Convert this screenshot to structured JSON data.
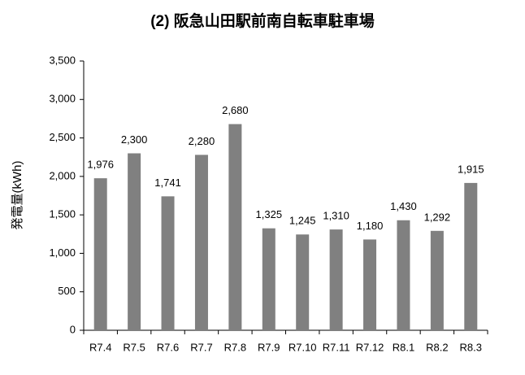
{
  "chart_data": {
    "type": "bar",
    "title": "(2) 阪急山田駅前南自転車駐車場",
    "y_label": "発電量(kWh)",
    "categories": [
      "R7.4",
      "R7.5",
      "R7.6",
      "R7.7",
      "R7.8",
      "R7.9",
      "R7.10",
      "R7.11",
      "R7.12",
      "R8.1",
      "R8.2",
      "R8.3"
    ],
    "values": [
      1976,
      2300,
      1741,
      2280,
      2680,
      1325,
      1245,
      1310,
      1180,
      1430,
      1292,
      1915
    ],
    "value_labels": [
      "1,976",
      "2,300",
      "1,741",
      "2,280",
      "2,680",
      "1,325",
      "1,245",
      "1,310",
      "1,180",
      "1,430",
      "1,292",
      "1,915"
    ],
    "color": "#808080",
    "ylim": [
      0,
      3500
    ],
    "yticks": [
      0,
      500,
      {
        "value": 1000,
        "label": "1,000"
      },
      {
        "value": 1500,
        "label": "1,500"
      },
      {
        "value": 2000,
        "label": "2,000"
      },
      {
        "value": 2500,
        "label": "2,500"
      },
      {
        "value": 3000,
        "label": "3,000"
      },
      {
        "value": 3500,
        "label": "3,500"
      }
    ],
    "grid": false
  }
}
